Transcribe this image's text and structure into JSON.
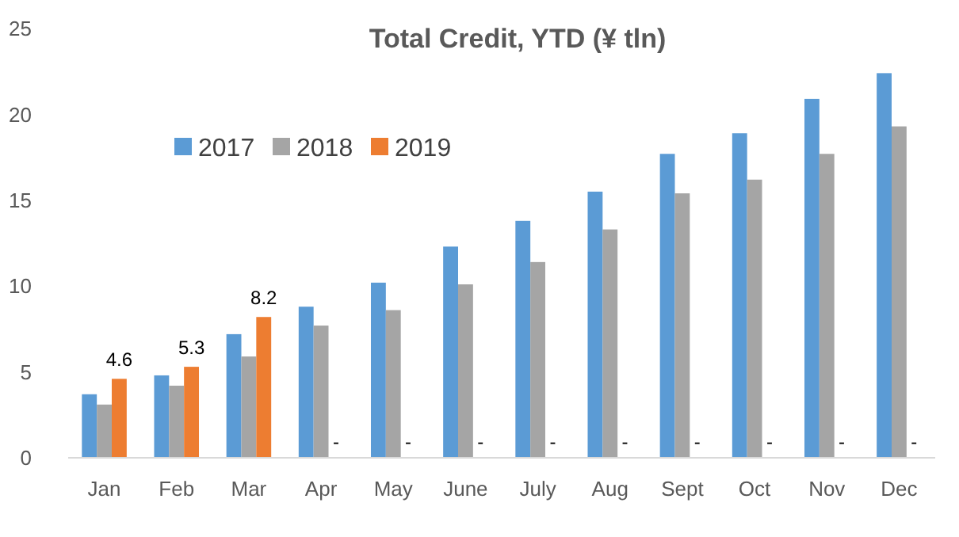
{
  "chart_data": {
    "type": "bar",
    "title": "Total Credit, YTD (¥ tln)",
    "categories": [
      "Jan",
      "Feb",
      "Mar",
      "Apr",
      "May",
      "June",
      "July",
      "Aug",
      "Sept",
      "Oct",
      "Nov",
      "Dec"
    ],
    "series": [
      {
        "name": "2017",
        "color": "#5b9bd5",
        "values": [
          3.7,
          4.8,
          7.2,
          8.8,
          10.2,
          12.3,
          13.8,
          15.5,
          17.7,
          18.9,
          20.9,
          22.4
        ]
      },
      {
        "name": "2018",
        "color": "#a5a5a5",
        "values": [
          3.1,
          4.2,
          5.9,
          7.7,
          8.6,
          10.1,
          11.4,
          13.3,
          15.4,
          16.2,
          17.7,
          19.3
        ]
      },
      {
        "name": "2019",
        "color": "#ed7d31",
        "values": [
          4.6,
          5.3,
          8.2,
          null,
          null,
          null,
          null,
          null,
          null,
          null,
          null,
          null
        ],
        "value_labels": [
          "4.6",
          "5.3",
          "8.2",
          "-",
          "-",
          "-",
          "-",
          "-",
          "-",
          "-",
          "-",
          "-"
        ]
      }
    ],
    "ylim": [
      0,
      25
    ],
    "yticks": [
      0,
      5,
      10,
      15,
      20,
      25
    ],
    "grid": false,
    "legend": "top left"
  }
}
